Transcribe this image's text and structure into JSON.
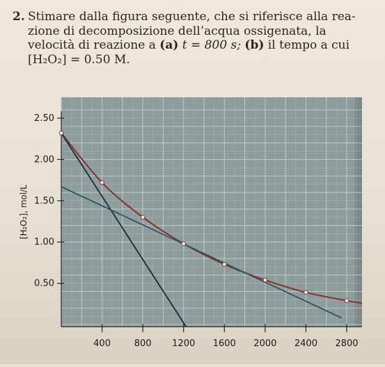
{
  "question": {
    "number": "2.",
    "line1": "Stimare dalla figura seguente, che si riferisce alla rea-",
    "line2": "zione di decomposizione dell’acqua ossigenata, la",
    "line3_a": "velocità di reazione a ",
    "line3_b": "(a)",
    "line3_c": " t = 800 s; ",
    "line3_d": "(b)",
    "line3_e": " il tempo a cui",
    "line4": "[H₂O₂] = 0.50 M."
  },
  "chart_data": {
    "type": "line",
    "title": "",
    "xlabel": "",
    "ylabel": "[H₂O₂], mol/L",
    "xlim": [
      0,
      2950
    ],
    "ylim": [
      0,
      2.6
    ],
    "x_ticks": [
      400,
      800,
      1200,
      1600,
      2000,
      2400,
      2800
    ],
    "y_ticks": [
      0.5,
      1.0,
      1.5,
      2.0,
      2.5
    ],
    "y_tick_labels": [
      "0.50",
      "1.00",
      "1.50",
      "2.00",
      "2.50"
    ],
    "grid": true,
    "series": [
      {
        "kind": "curve",
        "color": "#8e2f2b",
        "x": [
          0,
          400,
          800,
          1200,
          1600,
          2000,
          2400,
          2800,
          2950
        ],
        "y": [
          2.32,
          1.72,
          1.3,
          0.98,
          0.73,
          0.54,
          0.39,
          0.29,
          0.26
        ]
      },
      {
        "kind": "tangent",
        "color": "#1b2a33",
        "x": [
          0,
          1300
        ],
        "y": [
          2.32,
          -0.17
        ]
      },
      {
        "kind": "tangent",
        "color": "#2a5560",
        "x": [
          0,
          2750
        ],
        "y": [
          1.67,
          0.08
        ]
      }
    ],
    "markers": {
      "x": [
        0,
        400,
        800,
        1200,
        1600,
        2000,
        2400,
        2800
      ],
      "y": [
        2.32,
        1.72,
        1.3,
        0.98,
        0.73,
        0.54,
        0.39,
        0.29
      ]
    }
  },
  "colors": {
    "plot_background": "#8d9c9c",
    "grid": "#c4cfcc",
    "axis": "#2a2620"
  }
}
